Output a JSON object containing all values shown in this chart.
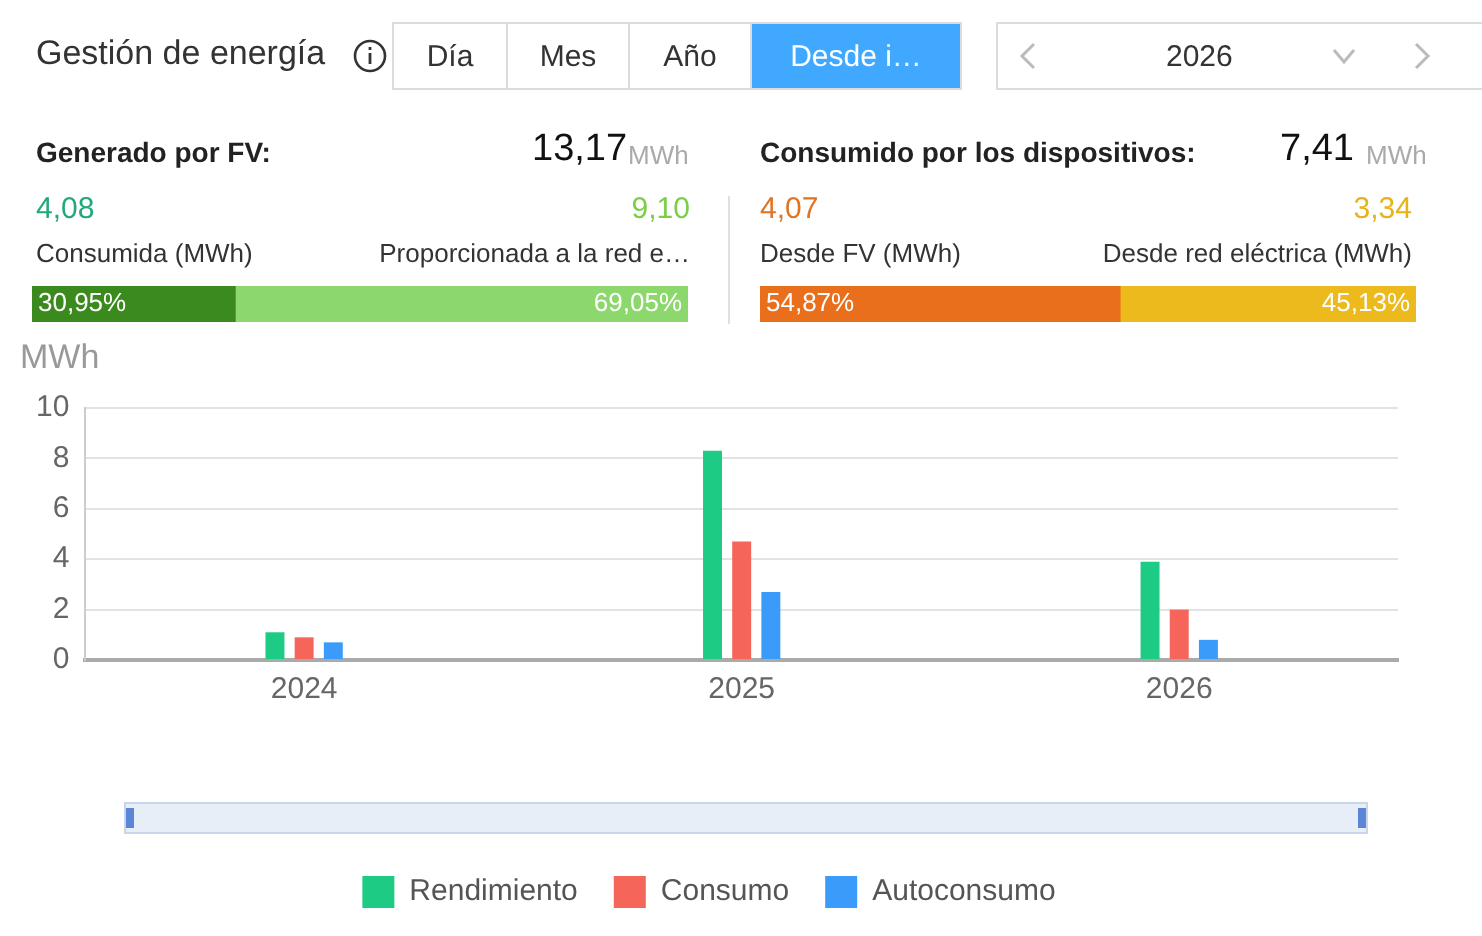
{
  "chart_data": [
    {
      "type": "other",
      "title": "Gestión de energía",
      "annotations": [
        "Día",
        "Mes",
        "Año",
        "Desde i…",
        "2026",
        "Generado por FV:",
        "13,17",
        "MWh",
        "4,08",
        "9,10",
        "Consumida (MWh)",
        "Proporcionada a la red e…",
        "Consumido por los dispositivos:",
        "7,41",
        "MWh",
        "4,07",
        "3,34",
        "Desde FV (MWh)",
        "Desde red eléctrica (MWh)"
      ]
    },
    {
      "type": "bar",
      "orientation": "horizontal",
      "stacked": true,
      "categories": [
        null
      ],
      "xlim": [
        0,
        100
      ],
      "tick_labels": false,
      "grid": false,
      "legend": false,
      "series": [
        {
          "color": "#3a8a1e",
          "values": [
            30.95
          ],
          "value_labels": [
            "30,95%"
          ]
        },
        {
          "color": "#8dd86c",
          "values": [
            69.05
          ],
          "value_labels": [
            "69,05%"
          ]
        }
      ]
    },
    {
      "type": "bar",
      "orientation": "horizontal",
      "stacked": true,
      "categories": [
        null
      ],
      "xlim": [
        0,
        100
      ],
      "tick_labels": false,
      "grid": false,
      "legend": false,
      "series": [
        {
          "color": "#ea6f1c",
          "values": [
            54.87
          ],
          "value_labels": [
            "54,87%"
          ]
        },
        {
          "color": "#ecba1c",
          "values": [
            45.13
          ],
          "value_labels": [
            "45,13%"
          ]
        }
      ]
    },
    {
      "type": "bar",
      "ylabel": "MWh",
      "categories": [
        "2024",
        "2025",
        "2026"
      ],
      "ylim": [
        0,
        10
      ],
      "yticks": [
        0,
        2,
        4,
        6,
        8,
        10
      ],
      "grid": "y",
      "legend": "bottom",
      "series": [
        {
          "name": "Rendimiento",
          "color": "#1ecb84",
          "values": [
            1.1,
            8.3,
            3.9
          ]
        },
        {
          "name": "Consumo",
          "color": "#f5655a",
          "values": [
            0.9,
            4.7,
            2.0
          ]
        },
        {
          "name": "Autoconsumo",
          "color": "#3a9bfb",
          "values": [
            0.7,
            2.7,
            0.8
          ]
        }
      ]
    }
  ]
}
